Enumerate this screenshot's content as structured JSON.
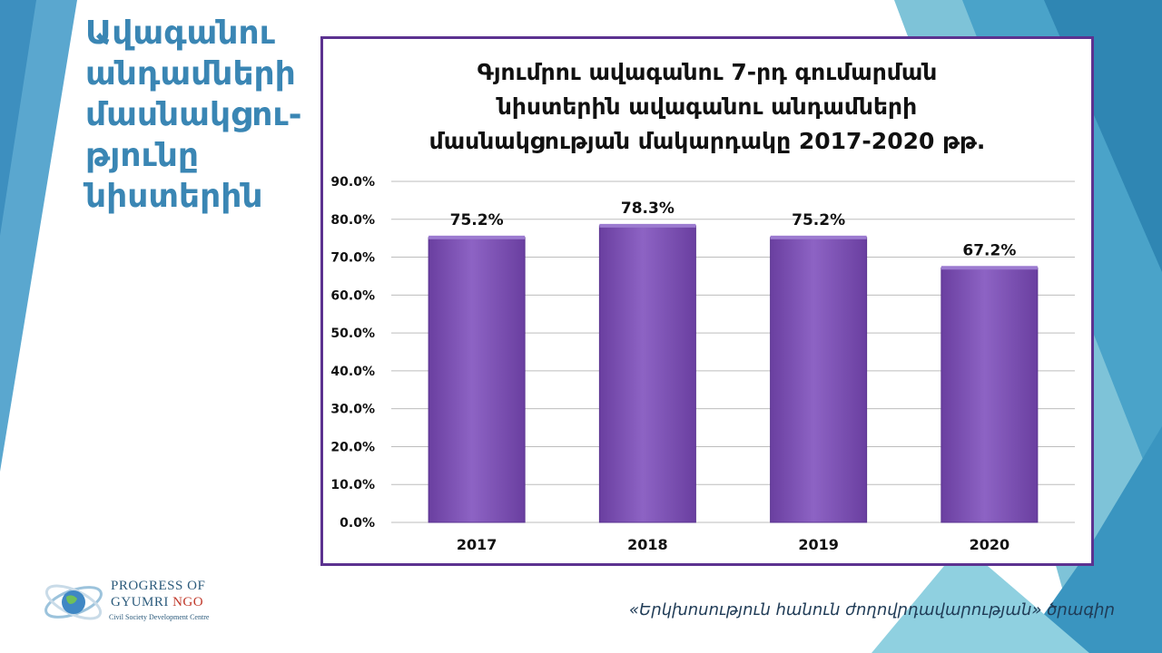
{
  "slide": {
    "title": "Ավագանու\nանդամների\nմասնակցու-\nթյունը\nնիստերին",
    "footer": "«Երկխոսություն հանուն ժողովրդավարության» ծրագիր"
  },
  "logo": {
    "line1": "PROGRESS OF",
    "line2_a": "GYUMRI ",
    "line2_b": "NGO",
    "line3": "Civil Society Development Centre"
  },
  "colors": {
    "accent": "#3a86b4",
    "frame": "#5c3290",
    "bar": "#7a4fb0",
    "bar_light": "#8d63c4",
    "bar_dark": "#6a3fa0"
  },
  "chart_data": {
    "type": "bar",
    "title": "Գյումրու ավագանու 7-րդ գումարման\nնիստերին ավագանու անդամների\nմասնակցության մակարդակը 2017-2020 թթ.",
    "categories": [
      "2017",
      "2018",
      "2019",
      "2020"
    ],
    "values": [
      75.2,
      78.3,
      75.2,
      67.2
    ],
    "data_labels": [
      "75.2%",
      "78.3%",
      "75.2%",
      "67.2%"
    ],
    "y_ticks": [
      "0.0%",
      "10.0%",
      "20.0%",
      "30.0%",
      "40.0%",
      "50.0%",
      "60.0%",
      "70.0%",
      "80.0%",
      "90.0%"
    ],
    "ylim": [
      0,
      90
    ],
    "grid": true,
    "legend": "none"
  }
}
